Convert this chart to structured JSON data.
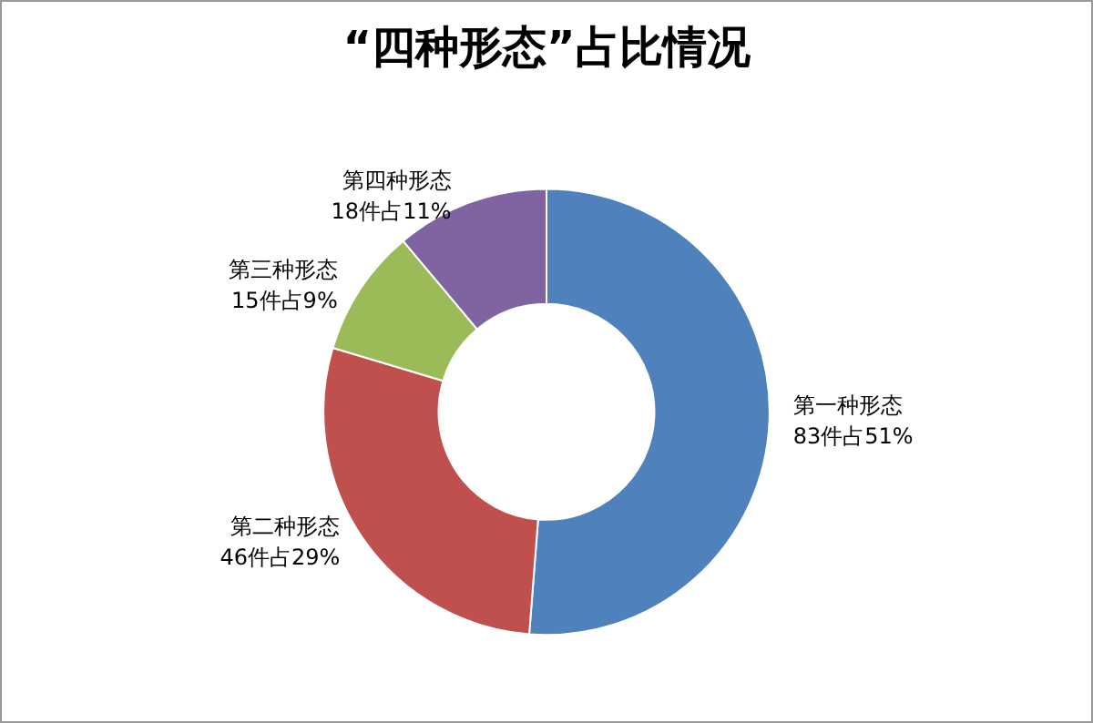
{
  "chart_data": {
    "type": "donut",
    "title": "“四种形态”占比情况",
    "categories": [
      "第一种形态",
      "第二种形态",
      "第三种形态",
      "第四种形态"
    ],
    "values": [
      83,
      46,
      15,
      18
    ],
    "value_labels": [
      "83件占51%",
      "46件占29%",
      "15件占9%",
      "18件占11%"
    ],
    "colors": [
      "#4f81bd",
      "#c0504d",
      "#9bbb59",
      "#8064a2"
    ],
    "legend": false
  }
}
